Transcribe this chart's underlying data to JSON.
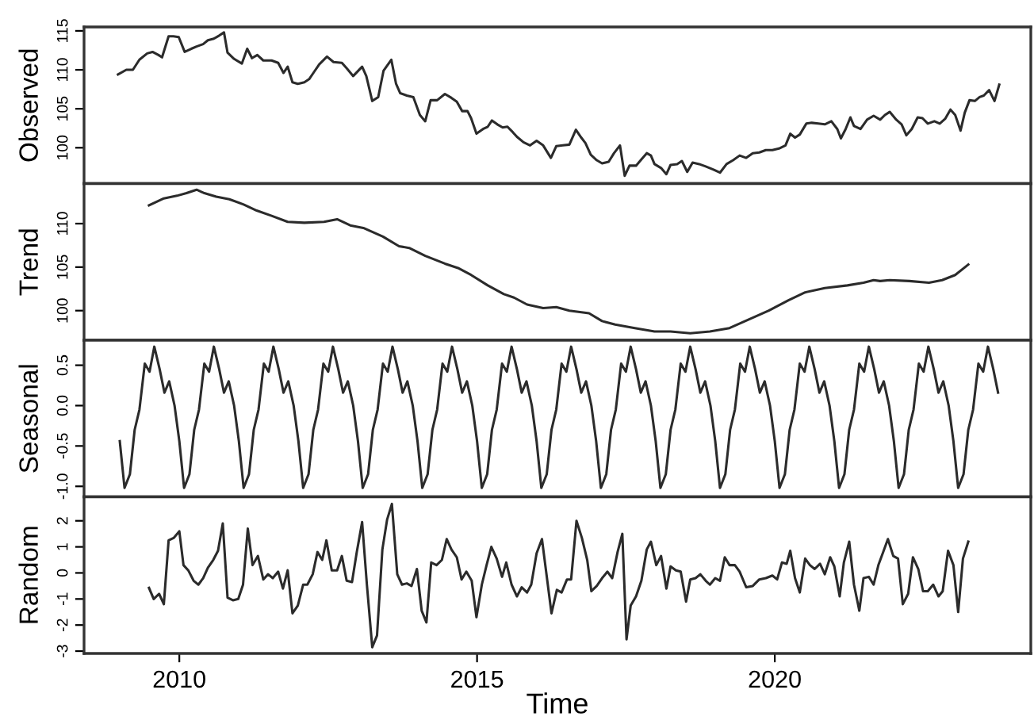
{
  "chart_data": [
    {
      "type": "line",
      "ylabel": "Observed",
      "xlim": [
        2008.4,
        2024.3
      ],
      "xticks": [
        2010,
        2015,
        2020
      ],
      "ylim": [
        95.4,
        115.5
      ],
      "yticks": [
        100,
        105,
        110,
        115
      ],
      "tick_labels": "y",
      "grid": false,
      "legend": false,
      "series": [
        {
          "color": "#2b2b2b",
          "x": [
            2008.97,
            2009.11,
            2009.22,
            2009.33,
            2009.46,
            2009.55,
            2009.65,
            2009.71,
            2009.82,
            2009.9,
            2009.99,
            2010.09,
            2010.2,
            2010.29,
            2010.4,
            2010.48,
            2010.58,
            2010.67,
            2010.75,
            2010.81,
            2010.92,
            2011.05,
            2011.14,
            2011.22,
            2011.31,
            2011.41,
            2011.55,
            2011.66,
            2011.75,
            2011.82,
            2011.9,
            2011.99,
            2012.1,
            2012.18,
            2012.26,
            2012.35,
            2012.48,
            2012.59,
            2012.73,
            2012.81,
            2012.92,
            2013.07,
            2013.14,
            2013.24,
            2013.34,
            2013.43,
            2013.56,
            2013.64,
            2013.71,
            2013.82,
            2013.93,
            2014.04,
            2014.13,
            2014.22,
            2014.33,
            2014.46,
            2014.57,
            2014.66,
            2014.75,
            2014.84,
            2014.9,
            2014.99,
            2015.1,
            2015.18,
            2015.25,
            2015.34,
            2015.43,
            2015.51,
            2015.6,
            2015.67,
            2015.78,
            2015.89,
            2016.0,
            2016.11,
            2016.24,
            2016.33,
            2016.44,
            2016.55,
            2016.66,
            2016.75,
            2016.82,
            2016.91,
            2017.01,
            2017.1,
            2017.21,
            2017.3,
            2017.4,
            2017.48,
            2017.56,
            2017.67,
            2017.76,
            2017.85,
            2017.92,
            2017.98,
            2018.09,
            2018.18,
            2018.25,
            2018.36,
            2018.44,
            2018.53,
            2018.62,
            2018.73,
            2018.84,
            2018.97,
            2019.08,
            2019.19,
            2019.3,
            2019.41,
            2019.52,
            2019.63,
            2019.74,
            2019.85,
            2019.96,
            2020.07,
            2020.18,
            2020.26,
            2020.34,
            2020.42,
            2020.53,
            2020.62,
            2020.73,
            2020.84,
            2020.95,
            2021.05,
            2021.11,
            2021.19,
            2021.27,
            2021.33,
            2021.44,
            2021.55,
            2021.66,
            2021.77,
            2021.85,
            2021.93,
            2022.04,
            2022.13,
            2022.21,
            2022.3,
            2022.4,
            2022.48,
            2022.57,
            2022.68,
            2022.77,
            2022.86,
            2022.95,
            2023.03,
            2023.12,
            2023.19,
            2023.27,
            2023.36,
            2023.44,
            2023.51,
            2023.6,
            2023.69,
            2023.77
          ],
          "values": [
            109.4,
            110.0,
            110.0,
            111.3,
            112.1,
            112.3,
            111.9,
            111.6,
            114.3,
            114.3,
            114.2,
            112.3,
            112.7,
            113.0,
            113.3,
            113.8,
            114.0,
            114.4,
            114.8,
            112.2,
            111.4,
            110.8,
            112.7,
            111.5,
            111.9,
            111.2,
            111.2,
            110.9,
            109.6,
            110.4,
            108.4,
            108.2,
            108.4,
            108.8,
            109.7,
            110.7,
            111.7,
            111.0,
            110.9,
            110.2,
            109.2,
            110.4,
            109.2,
            106.0,
            106.5,
            109.9,
            111.3,
            108.2,
            107.0,
            106.7,
            106.5,
            104.2,
            103.4,
            106.1,
            106.1,
            106.9,
            106.4,
            105.9,
            104.7,
            104.7,
            103.8,
            101.8,
            102.4,
            102.7,
            103.5,
            103.0,
            102.6,
            102.7,
            102.0,
            101.4,
            100.7,
            100.3,
            100.9,
            100.3,
            98.7,
            100.2,
            100.3,
            100.4,
            102.3,
            101.3,
            100.6,
            99.1,
            98.4,
            98.0,
            98.2,
            99.3,
            100.3,
            96.4,
            97.7,
            97.7,
            98.5,
            99.3,
            99.0,
            97.9,
            97.4,
            96.6,
            97.8,
            97.9,
            98.3,
            96.9,
            98.1,
            97.9,
            97.6,
            97.2,
            96.8,
            97.9,
            98.4,
            99.0,
            98.7,
            99.3,
            99.4,
            99.7,
            99.7,
            99.9,
            100.3,
            101.8,
            101.3,
            101.7,
            103.1,
            103.2,
            103.1,
            103.0,
            103.4,
            102.4,
            101.2,
            102.4,
            103.9,
            102.8,
            102.4,
            103.6,
            104.1,
            103.6,
            104.2,
            104.6,
            103.6,
            103.0,
            101.6,
            102.4,
            103.9,
            103.8,
            103.1,
            103.4,
            103.1,
            103.7,
            104.9,
            104.2,
            102.2,
            104.5,
            106.1,
            106.0,
            106.5,
            106.7,
            107.4,
            106.0,
            108.1
          ]
        }
      ]
    },
    {
      "type": "line",
      "ylabel": "Trend",
      "xlim": [
        2008.4,
        2024.3
      ],
      "xticks": [
        2010,
        2015,
        2020
      ],
      "ylim": [
        96.6,
        114.6
      ],
      "yticks": [
        100,
        105,
        110
      ],
      "tick_labels": "y",
      "grid": false,
      "legend": false,
      "series": [
        {
          "color": "#2b2b2b",
          "x": [
            2009.49,
            2009.74,
            2009.96,
            2010.12,
            2010.29,
            2010.42,
            2010.62,
            2010.84,
            2011.08,
            2011.3,
            2011.55,
            2011.82,
            2012.1,
            2012.43,
            2012.65,
            2012.87,
            2013.09,
            2013.42,
            2013.69,
            2013.86,
            2014.13,
            2014.46,
            2014.68,
            2014.9,
            2015.18,
            2015.45,
            2015.62,
            2015.84,
            2016.11,
            2016.33,
            2016.55,
            2016.88,
            2017.1,
            2017.32,
            2017.65,
            2017.98,
            2018.25,
            2018.58,
            2018.91,
            2019.24,
            2019.57,
            2019.9,
            2020.23,
            2020.51,
            2020.84,
            2021.22,
            2021.49,
            2021.66,
            2021.77,
            2021.93,
            2022.26,
            2022.59,
            2022.81,
            2023.03,
            2023.25
          ],
          "values": [
            112.1,
            112.9,
            113.2,
            113.5,
            113.9,
            113.5,
            113.1,
            112.8,
            112.2,
            111.5,
            110.9,
            110.2,
            110.1,
            110.2,
            110.5,
            109.8,
            109.5,
            108.5,
            107.4,
            107.2,
            106.3,
            105.4,
            104.9,
            104.1,
            102.9,
            101.9,
            101.5,
            100.7,
            100.3,
            100.4,
            100.0,
            99.7,
            98.8,
            98.4,
            98.0,
            97.6,
            97.6,
            97.4,
            97.6,
            98.0,
            99.0,
            100.0,
            101.2,
            102.1,
            102.6,
            102.9,
            103.2,
            103.5,
            103.4,
            103.5,
            103.4,
            103.2,
            103.5,
            104.1,
            105.3
          ]
        }
      ]
    },
    {
      "type": "line",
      "ylabel": "Seasonal",
      "xlim": [
        2008.4,
        2024.3
      ],
      "xticks": [
        2010,
        2015,
        2020
      ],
      "ylim": [
        -1.13,
        0.81
      ],
      "yticks": [
        {
          "value": -1,
          "label": "-1.0"
        },
        {
          "value": -0.5,
          "label": "-0.5"
        },
        {
          "value": 0,
          "label": "0.0"
        },
        {
          "value": 0.5,
          "label": "0.5"
        }
      ],
      "tick_labels": "y",
      "grid": false,
      "legend": false,
      "series": [
        {
          "color": "#2b2b2b",
          "x": [
            2009.0,
            2009.08,
            2009.17,
            2009.25,
            2009.33,
            2009.42,
            2009.5,
            2009.58,
            2009.67,
            2009.75,
            2009.83,
            2009.92,
            2010.0,
            2010.08,
            2010.17,
            2010.25,
            2010.33,
            2010.42,
            2010.5,
            2010.58,
            2010.67,
            2010.75,
            2010.83,
            2010.92,
            2011.0,
            2011.08,
            2011.17,
            2011.25,
            2011.33,
            2011.42,
            2011.5,
            2011.58,
            2011.67,
            2011.75,
            2011.83,
            2011.92,
            2012.0,
            2012.08,
            2012.17,
            2012.25,
            2012.33,
            2012.42,
            2012.5,
            2012.58,
            2012.67,
            2012.75,
            2012.83,
            2012.92,
            2013.0,
            2013.08,
            2013.17,
            2013.25,
            2013.33,
            2013.42,
            2013.5,
            2013.58,
            2013.67,
            2013.75,
            2013.83,
            2013.92,
            2014.0,
            2014.08,
            2014.17,
            2014.25,
            2014.33,
            2014.42,
            2014.5,
            2014.58,
            2014.67,
            2014.75,
            2014.83,
            2014.92,
            2015.0,
            2015.08,
            2015.17,
            2015.25,
            2015.33,
            2015.42,
            2015.5,
            2015.58,
            2015.67,
            2015.75,
            2015.83,
            2015.92,
            2016.0,
            2016.08,
            2016.17,
            2016.25,
            2016.33,
            2016.42,
            2016.5,
            2016.58,
            2016.67,
            2016.75,
            2016.83,
            2016.92,
            2017.0,
            2017.08,
            2017.17,
            2017.25,
            2017.33,
            2017.42,
            2017.5,
            2017.58,
            2017.67,
            2017.75,
            2017.83,
            2017.92,
            2018.0,
            2018.08,
            2018.17,
            2018.25,
            2018.33,
            2018.42,
            2018.5,
            2018.58,
            2018.67,
            2018.75,
            2018.83,
            2018.92,
            2019.0,
            2019.08,
            2019.17,
            2019.25,
            2019.33,
            2019.42,
            2019.5,
            2019.58,
            2019.67,
            2019.75,
            2019.83,
            2019.92,
            2020.0,
            2020.08,
            2020.17,
            2020.25,
            2020.33,
            2020.42,
            2020.5,
            2020.58,
            2020.67,
            2020.75,
            2020.83,
            2020.92,
            2021.0,
            2021.08,
            2021.17,
            2021.25,
            2021.33,
            2021.42,
            2021.5,
            2021.58,
            2021.67,
            2021.75,
            2021.83,
            2021.92,
            2022.0,
            2022.08,
            2022.17,
            2022.25,
            2022.33,
            2022.42,
            2022.5,
            2022.58,
            2022.67,
            2022.75,
            2022.83,
            2022.92,
            2023.0,
            2023.08,
            2023.17,
            2023.25,
            2023.33,
            2023.42,
            2023.5,
            2023.58,
            2023.67,
            2023.75
          ],
          "values": [
            -0.44,
            -1.02,
            -0.85,
            -0.3,
            -0.05,
            0.52,
            0.42,
            0.73,
            0.45,
            0.16,
            0.3,
            0.0,
            -0.44,
            -1.02,
            -0.85,
            -0.3,
            -0.05,
            0.52,
            0.42,
            0.73,
            0.45,
            0.16,
            0.3,
            0.0,
            -0.44,
            -1.02,
            -0.85,
            -0.3,
            -0.05,
            0.52,
            0.42,
            0.73,
            0.45,
            0.16,
            0.3,
            0.0,
            -0.44,
            -1.02,
            -0.85,
            -0.3,
            -0.05,
            0.52,
            0.42,
            0.73,
            0.45,
            0.16,
            0.3,
            0.0,
            -0.44,
            -1.02,
            -0.85,
            -0.3,
            -0.05,
            0.52,
            0.42,
            0.73,
            0.45,
            0.16,
            0.3,
            0.0,
            -0.44,
            -1.02,
            -0.85,
            -0.3,
            -0.05,
            0.52,
            0.42,
            0.73,
            0.45,
            0.16,
            0.3,
            0.0,
            -0.44,
            -1.02,
            -0.85,
            -0.3,
            -0.05,
            0.52,
            0.42,
            0.73,
            0.45,
            0.16,
            0.3,
            0.0,
            -0.44,
            -1.02,
            -0.85,
            -0.3,
            -0.05,
            0.52,
            0.42,
            0.73,
            0.45,
            0.16,
            0.3,
            0.0,
            -0.44,
            -1.02,
            -0.85,
            -0.3,
            -0.05,
            0.52,
            0.42,
            0.73,
            0.45,
            0.16,
            0.3,
            0.0,
            -0.44,
            -1.02,
            -0.85,
            -0.3,
            -0.05,
            0.52,
            0.42,
            0.73,
            0.45,
            0.16,
            0.3,
            0.0,
            -0.44,
            -1.02,
            -0.85,
            -0.3,
            -0.05,
            0.52,
            0.42,
            0.73,
            0.45,
            0.16,
            0.3,
            0.0,
            -0.44,
            -1.02,
            -0.85,
            -0.3,
            -0.05,
            0.52,
            0.42,
            0.73,
            0.45,
            0.16,
            0.3,
            0.0,
            -0.44,
            -1.02,
            -0.85,
            -0.3,
            -0.05,
            0.52,
            0.42,
            0.73,
            0.45,
            0.16,
            0.3,
            0.0,
            -0.44,
            -1.02,
            -0.85,
            -0.3,
            -0.05,
            0.52,
            0.42,
            0.73,
            0.45,
            0.16,
            0.3,
            0.0,
            -0.44,
            -1.02,
            -0.85,
            -0.3,
            -0.05,
            0.52,
            0.42,
            0.73,
            0.45,
            0.16
          ]
        }
      ]
    },
    {
      "type": "line",
      "ylabel": "Random",
      "xlabel": "Time",
      "xlim": [
        2008.4,
        2024.3
      ],
      "xticks": [
        2010,
        2015,
        2020
      ],
      "ylim": [
        -3.09,
        2.92
      ],
      "yticks": [
        -3,
        -2,
        -1,
        0,
        1,
        2
      ],
      "grid": false,
      "legend": false,
      "series": [
        {
          "color": "#2b2b2b",
          "x": [
            2009.49,
            2009.57,
            2009.66,
            2009.74,
            2009.82,
            2009.91,
            2010.0,
            2010.07,
            2010.15,
            2010.24,
            2010.32,
            2010.4,
            2010.48,
            2010.57,
            2010.65,
            2010.73,
            2010.81,
            2010.9,
            2010.99,
            2011.07,
            2011.15,
            2011.23,
            2011.32,
            2011.41,
            2011.49,
            2011.57,
            2011.66,
            2011.74,
            2011.82,
            2011.9,
            2011.99,
            2012.08,
            2012.15,
            2012.24,
            2012.32,
            2012.4,
            2012.47,
            2012.56,
            2012.65,
            2012.73,
            2012.81,
            2012.9,
            2012.98,
            2013.07,
            2013.15,
            2013.24,
            2013.32,
            2013.41,
            2013.49,
            2013.57,
            2013.66,
            2013.74,
            2013.82,
            2013.9,
            2013.99,
            2014.07,
            2014.15,
            2014.23,
            2014.32,
            2014.41,
            2014.49,
            2014.57,
            2014.66,
            2014.74,
            2014.82,
            2014.91,
            2014.99,
            2015.08,
            2015.16,
            2015.24,
            2015.33,
            2015.42,
            2015.49,
            2015.58,
            2015.67,
            2015.75,
            2015.84,
            2015.91,
            2016.0,
            2016.09,
            2016.16,
            2016.25,
            2016.34,
            2016.42,
            2016.51,
            2016.58,
            2016.67,
            2016.76,
            2016.85,
            2016.92,
            2017.01,
            2017.1,
            2017.19,
            2017.27,
            2017.36,
            2017.44,
            2017.51,
            2017.58,
            2017.67,
            2017.76,
            2017.85,
            2017.92,
            2018.01,
            2018.09,
            2018.18,
            2018.25,
            2018.34,
            2018.42,
            2018.51,
            2018.58,
            2018.67,
            2018.75,
            2018.84,
            2018.91,
            2019.0,
            2019.08,
            2019.16,
            2019.24,
            2019.33,
            2019.41,
            2019.52,
            2019.63,
            2019.74,
            2019.85,
            2019.96,
            2020.04,
            2020.12,
            2020.2,
            2020.26,
            2020.34,
            2020.42,
            2020.51,
            2020.59,
            2020.67,
            2020.76,
            2020.84,
            2020.93,
            2021.0,
            2021.09,
            2021.16,
            2021.25,
            2021.33,
            2021.42,
            2021.49,
            2021.58,
            2021.66,
            2021.74,
            2021.82,
            2021.9,
            2021.99,
            2022.07,
            2022.15,
            2022.24,
            2022.32,
            2022.41,
            2022.49,
            2022.57,
            2022.66,
            2022.75,
            2022.82,
            2022.91,
            2023.0,
            2023.08,
            2023.16,
            2023.25
          ],
          "values": [
            -0.57,
            -1.0,
            -0.8,
            -1.2,
            1.25,
            1.35,
            1.6,
            0.3,
            0.1,
            -0.3,
            -0.45,
            -0.2,
            0.2,
            0.5,
            0.85,
            1.9,
            -0.95,
            -1.05,
            -1.0,
            -0.45,
            1.7,
            0.3,
            0.65,
            -0.25,
            -0.05,
            -0.2,
            0.05,
            -0.6,
            0.1,
            -1.55,
            -1.25,
            -0.45,
            -0.45,
            -0.05,
            0.8,
            0.5,
            1.25,
            0.1,
            0.1,
            0.65,
            -0.3,
            -0.35,
            0.8,
            1.95,
            -0.45,
            -2.85,
            -2.4,
            0.9,
            2.05,
            2.65,
            -0.05,
            -0.45,
            -0.4,
            -0.5,
            0.15,
            -1.45,
            -1.9,
            0.4,
            0.3,
            0.5,
            1.3,
            0.9,
            0.6,
            -0.25,
            0.05,
            -0.3,
            -1.7,
            -0.45,
            0.3,
            1.0,
            0.55,
            -0.15,
            0.4,
            -0.45,
            -0.9,
            -0.55,
            -0.75,
            -0.45,
            0.75,
            1.3,
            0.05,
            -1.55,
            -0.65,
            -0.75,
            -0.25,
            -0.25,
            2.0,
            1.35,
            0.5,
            -0.7,
            -0.5,
            -0.2,
            0.05,
            -0.2,
            0.8,
            1.5,
            -2.55,
            -1.25,
            -0.9,
            -0.3,
            0.9,
            1.2,
            0.3,
            0.65,
            -0.6,
            0.25,
            0.1,
            0.05,
            -1.1,
            -0.25,
            -0.2,
            -0.05,
            -0.3,
            -0.45,
            -0.2,
            -0.3,
            0.6,
            0.3,
            0.3,
            0.05,
            -0.55,
            -0.5,
            -0.25,
            -0.2,
            -0.1,
            -0.25,
            0.4,
            0.35,
            0.85,
            -0.2,
            -0.75,
            0.55,
            0.3,
            0.15,
            0.35,
            -0.05,
            0.6,
            0.25,
            -0.9,
            0.4,
            1.2,
            -0.45,
            -1.45,
            -0.2,
            -0.15,
            -0.45,
            0.3,
            0.8,
            1.3,
            0.65,
            0.55,
            -1.2,
            -0.8,
            0.6,
            0.15,
            -0.7,
            -0.7,
            -0.45,
            -0.9,
            -0.7,
            0.85,
            0.3,
            -1.5,
            0.55,
            1.2
          ]
        }
      ]
    }
  ]
}
